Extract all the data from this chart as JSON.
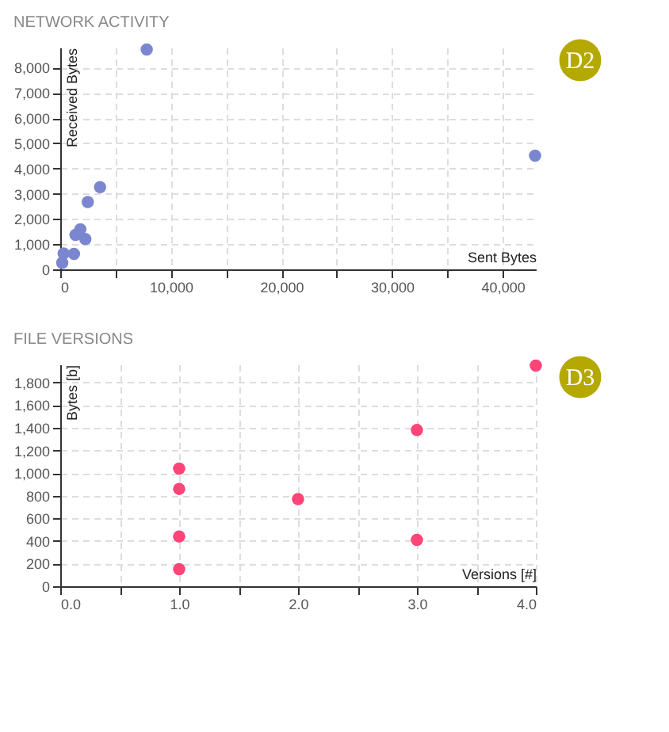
{
  "chart_data": [
    {
      "type": "scatter",
      "title": "NETWORK ACTIVITY",
      "xlabel": "Sent Bytes",
      "ylabel": "Received Bytes",
      "annotations": [
        "D2"
      ],
      "color": "#7b86d0",
      "marker": "circle",
      "grid": true,
      "x": [
        7820,
        42930,
        3600,
        2490,
        1820,
        1380,
        2270,
        1240,
        310,
        180
      ],
      "values": [
        8720,
        4510,
        3260,
        2670,
        1590,
        1370,
        1200,
        610,
        630,
        260
      ],
      "xlim": [
        0,
        43000
      ],
      "ylim": [
        0,
        8800
      ],
      "xticks": [
        0,
        {
          "value": 5000,
          "label": null
        },
        {
          "value": 10000,
          "label": "10,000"
        },
        {
          "value": 15000,
          "label": null
        },
        {
          "value": 20000,
          "label": "20,000"
        },
        {
          "value": 25000,
          "label": null
        },
        {
          "value": 30000,
          "label": "30,000"
        },
        {
          "value": 35000,
          "label": null
        },
        {
          "value": 40000,
          "label": "40,000"
        }
      ],
      "yticks": [
        0,
        {
          "value": 1000,
          "label": "1,000"
        },
        {
          "value": 2000,
          "label": "2,000"
        },
        {
          "value": 3000,
          "label": "3,000"
        },
        {
          "value": 4000,
          "label": "4,000"
        },
        {
          "value": 5000,
          "label": "5,000"
        },
        {
          "value": 6000,
          "label": "6,000"
        },
        {
          "value": 7000,
          "label": "7,000"
        },
        {
          "value": 8000,
          "label": "8,000"
        }
      ]
    },
    {
      "type": "scatter",
      "title": "FILE VERSIONS",
      "xlabel": "Versions [#]",
      "ylabel": "Bytes [b]",
      "annotations": [
        "D3"
      ],
      "color": "#ff4477",
      "marker": "circle",
      "grid": true,
      "x": [
        4,
        3,
        1,
        1,
        2,
        1,
        3,
        1
      ],
      "values": [
        1950,
        1380,
        1040,
        860,
        770,
        440,
        410,
        150
      ],
      "xlim": [
        0,
        4
      ],
      "ylim": [
        0,
        1960
      ],
      "xticks": [
        {
          "value": 0,
          "label": "0.0"
        },
        {
          "value": 0.5,
          "label": null
        },
        {
          "value": 1,
          "label": "1.0"
        },
        {
          "value": 1.5,
          "label": null
        },
        {
          "value": 2,
          "label": "2.0"
        },
        {
          "value": 2.5,
          "label": null
        },
        {
          "value": 3,
          "label": "3.0"
        },
        {
          "value": 3.5,
          "label": null
        },
        {
          "value": 4,
          "label": "4.0"
        }
      ],
      "yticks": [
        0,
        200,
        400,
        600,
        800,
        {
          "value": 1000,
          "label": "1,000"
        },
        {
          "value": 1200,
          "label": "1,200"
        },
        {
          "value": 1400,
          "label": "1,400"
        },
        {
          "value": 1600,
          "label": "1,600"
        },
        {
          "value": 1800,
          "label": "1,800"
        }
      ]
    }
  ]
}
